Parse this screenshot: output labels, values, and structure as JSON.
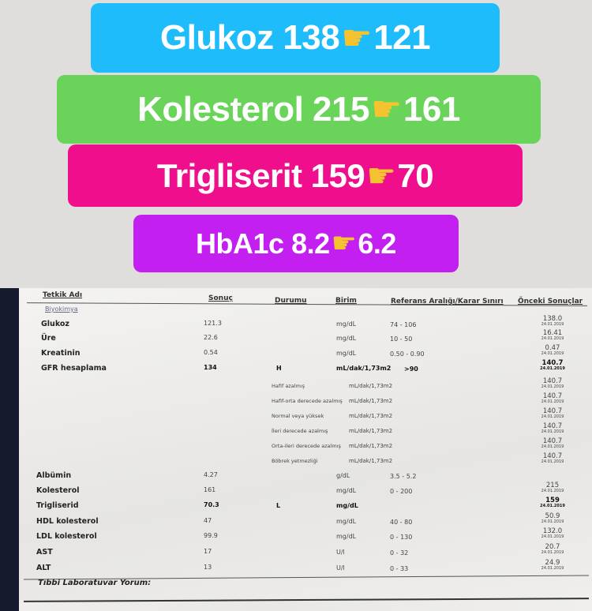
{
  "banners": [
    {
      "label": "Glukoz",
      "before": "138",
      "after": "121",
      "color": "#1ebcfb"
    },
    {
      "label": "Kolesterol",
      "before": "215",
      "after": "161",
      "color": "#6ad45a"
    },
    {
      "label": "Trigliserit",
      "before": "159",
      "after": "70",
      "color": "#ef0f8c"
    },
    {
      "label": "HbA1c",
      "before": "8.2",
      "after": "6.2",
      "color": "#c31ff0"
    }
  ],
  "arrow_icon": "pointing-hand-right",
  "report": {
    "headers": {
      "name": "Tetkik Adı",
      "result": "Sonuç",
      "status": "Durumu",
      "unit": "Birim",
      "reference": "Referans Aralığı/Karar Sınırı",
      "previous": "Önceki Sonuçlar"
    },
    "section": "Biyokimya",
    "rows": [
      {
        "name": "Glukoz",
        "result": "121.3",
        "status": "",
        "unit": "mg/dL",
        "ref": "74 - 106",
        "prev": "138.0",
        "prev_date": "24.01.2019"
      },
      {
        "name": "Üre",
        "result": "22.6",
        "status": "",
        "unit": "mg/dL",
        "ref": "10 - 50",
        "prev": "16.41",
        "prev_date": "24.01.2019"
      },
      {
        "name": "Kreatinin",
        "result": "0.54",
        "status": "",
        "unit": "mg/dL",
        "ref": "0.50 - 0.90",
        "prev": "0.47",
        "prev_date": "24.01.2019"
      },
      {
        "name": "GFR hesaplama",
        "result": "134",
        "status": "H",
        "unit": "mL/dak/1,73m2",
        "ref": ">90",
        "prev": "140.7",
        "prev_date": "24.01.2019",
        "bold": true
      },
      {
        "name": "",
        "result": "",
        "status": "Hafif azalmış",
        "unit": "mL/dak/1,73m2",
        "ref": "",
        "prev": "140.7",
        "prev_date": "24.01.2019"
      },
      {
        "name": "",
        "result": "",
        "status": "Hafif-orta derecede azalmış",
        "unit": "mL/dak/1,73m2",
        "ref": "",
        "prev": "140.7",
        "prev_date": "24.01.2019"
      },
      {
        "name": "",
        "result": "",
        "status": "Normal veya yüksek",
        "unit": "mL/dak/1,73m2",
        "ref": "",
        "prev": "140.7",
        "prev_date": "24.01.2019"
      },
      {
        "name": "",
        "result": "",
        "status": "İleri derecede azalmış",
        "unit": "mL/dak/1,73m2",
        "ref": "",
        "prev": "140.7",
        "prev_date": "24.01.2019"
      },
      {
        "name": "",
        "result": "",
        "status": "Orta-ileri derecede azalmış",
        "unit": "mL/dak/1,73m2",
        "ref": "",
        "prev": "140.7",
        "prev_date": "24.01.2019"
      },
      {
        "name": "",
        "result": "",
        "status": "Böbrek yetmezliği",
        "unit": "mL/dak/1,73m2",
        "ref": "",
        "prev": "140.7",
        "prev_date": "24.01.2019"
      },
      {
        "name": "Albümin",
        "result": "4.27",
        "status": "",
        "unit": "g/dL",
        "ref": "3.5 - 5.2",
        "prev": "",
        "prev_date": ""
      },
      {
        "name": "Kolesterol",
        "result": "161",
        "status": "",
        "unit": "mg/dL",
        "ref": "0 - 200",
        "prev": "215",
        "prev_date": "24.01.2019"
      },
      {
        "name": "Trigliserid",
        "result": "70.3",
        "status": "L",
        "unit": "mg/dL",
        "ref": "",
        "prev": "159",
        "prev_date": "24.01.2019",
        "bold": true
      },
      {
        "name": "HDL kolesterol",
        "result": "47",
        "status": "",
        "unit": "mg/dL",
        "ref": "40 - 80",
        "prev": "50.9",
        "prev_date": "24.01.2019"
      },
      {
        "name": "LDL kolesterol",
        "result": "99.9",
        "status": "",
        "unit": "mg/dL",
        "ref": "0 - 130",
        "prev": "132.0",
        "prev_date": "24.01.2019"
      },
      {
        "name": "AST",
        "result": "17",
        "status": "",
        "unit": "U/l",
        "ref": "0 - 32",
        "prev": "20.7",
        "prev_date": "24.01.2019"
      },
      {
        "name": "ALT",
        "result": "13",
        "status": "",
        "unit": "U/l",
        "ref": "0 - 33",
        "prev": "24.9",
        "prev_date": "24.01.2019"
      }
    ],
    "comment_label": "Tıbbi Laboratuvar Yorum:"
  }
}
